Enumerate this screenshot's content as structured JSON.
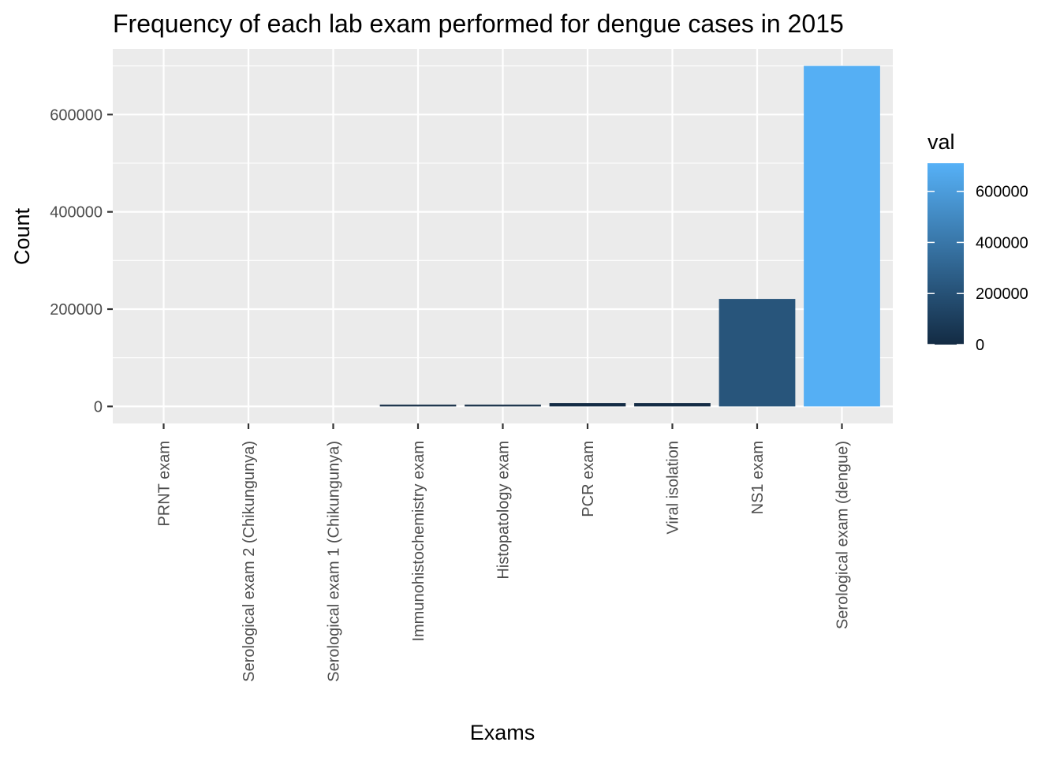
{
  "chart_data": {
    "type": "bar",
    "title": "Frequency of each lab exam performed for dengue cases in 2015",
    "xlabel": "Exams",
    "ylabel": "Count",
    "categories": [
      "PRNT exam",
      "Serological exam 2 (Chikungunya)",
      "Serological exam 1 (Chikungunya)",
      "Immunohistochemistry exam",
      "Histopatology exam",
      "PCR exam",
      "Viral isolation",
      "NS1 exam",
      "Serological exam (dengue)"
    ],
    "values": [
      0,
      0,
      0,
      3500,
      3500,
      7000,
      7000,
      221000,
      700000
    ],
    "ylim": [
      -35000,
      735000
    ],
    "yticks": [
      0,
      200000,
      400000,
      600000
    ],
    "ytick_labels": [
      "0",
      "200000",
      "400000",
      "600000"
    ],
    "grid": true,
    "legend": {
      "title": "val",
      "placement": "right",
      "type": "colorbar",
      "range": [
        0,
        710000
      ],
      "ticks": [
        0,
        200000,
        400000,
        600000
      ],
      "tick_labels": [
        "0",
        "200000",
        "400000",
        "600000"
      ],
      "low_color": "#132b43",
      "high_color": "#56b1f7"
    },
    "panel_color": "#ebebeb",
    "grid_color": "#ffffff"
  }
}
